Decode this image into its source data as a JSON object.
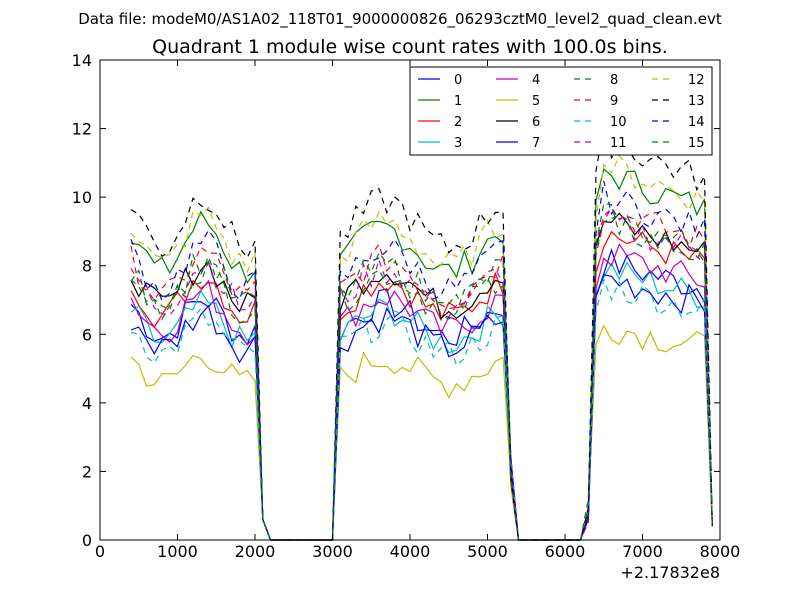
{
  "chart_data": {
    "type": "line",
    "suptitle": "Data file: modeM0/AS1A02_118T01_9000000826_06293cztM0_level2_quad_clean.evt",
    "title": "Quadrant 1 module wise count rates with 100.0s bins.",
    "xlabel": "",
    "ylabel": "",
    "x_offset_label": "+2.17832e8",
    "xlim": [
      0,
      8000
    ],
    "ylim": [
      0,
      14
    ],
    "xticks": [
      0,
      1000,
      2000,
      3000,
      4000,
      5000,
      6000,
      7000,
      8000
    ],
    "yticks": [
      0,
      2,
      4,
      6,
      8,
      10,
      12,
      14
    ],
    "legend_position": "top-right",
    "legend_columns": 4,
    "x": [
      400,
      500,
      600,
      700,
      800,
      900,
      1000,
      1100,
      1200,
      1300,
      1400,
      1500,
      1600,
      1700,
      1800,
      1900,
      2000,
      2100,
      2200,
      2300,
      2400,
      2500,
      2600,
      2700,
      2800,
      2900,
      3000,
      3100,
      3200,
      3300,
      3400,
      3500,
      3600,
      3700,
      3800,
      3900,
      4000,
      4100,
      4200,
      4300,
      4400,
      4500,
      4600,
      4700,
      4800,
      4900,
      5000,
      5100,
      5200,
      5300,
      5400,
      5500,
      5600,
      5700,
      5800,
      5900,
      6000,
      6100,
      6200,
      6300,
      6400,
      6500,
      6600,
      6700,
      6800,
      6900,
      7000,
      7100,
      7200,
      7300,
      7400,
      7500,
      7600,
      7700,
      7800,
      7900
    ],
    "series": [
      {
        "name": "0",
        "color": "#0000ff",
        "dash": "solid",
        "level": 6.9
      },
      {
        "name": "1",
        "color": "#008000",
        "dash": "solid",
        "level": 9.1
      },
      {
        "name": "2",
        "color": "#ff0000",
        "dash": "solid",
        "level": 7.6
      },
      {
        "name": "3",
        "color": "#00bfbf",
        "dash": "solid",
        "level": 6.7
      },
      {
        "name": "4",
        "color": "#bf00bf",
        "dash": "solid",
        "level": 7.1
      },
      {
        "name": "5",
        "color": "#bfbf00",
        "dash": "solid",
        "level": 5.3
      },
      {
        "name": "6",
        "color": "#000000",
        "dash": "solid",
        "level": 7.9
      },
      {
        "name": "7",
        "color": "#0000ff",
        "dash": "solid",
        "level": 6.5
      },
      {
        "name": "8",
        "color": "#008000",
        "dash": "dashed",
        "level": 7.8
      },
      {
        "name": "9",
        "color": "#ff0000",
        "dash": "dashed",
        "level": 8.2
      },
      {
        "name": "10",
        "color": "#00bfbf",
        "dash": "dashed",
        "level": 6.3
      },
      {
        "name": "11",
        "color": "#bf00bf",
        "dash": "dashed",
        "level": 7.9
      },
      {
        "name": "12",
        "color": "#bfbf00",
        "dash": "dashed",
        "level": 9.3
      },
      {
        "name": "13",
        "color": "#000000",
        "dash": "dashed",
        "level": 9.9
      },
      {
        "name": "14",
        "color": "#0000ff",
        "dash": "dashed",
        "level": 8.5
      },
      {
        "name": "15",
        "color": "#008000",
        "dash": "dashed",
        "level": 8.0
      }
    ]
  }
}
